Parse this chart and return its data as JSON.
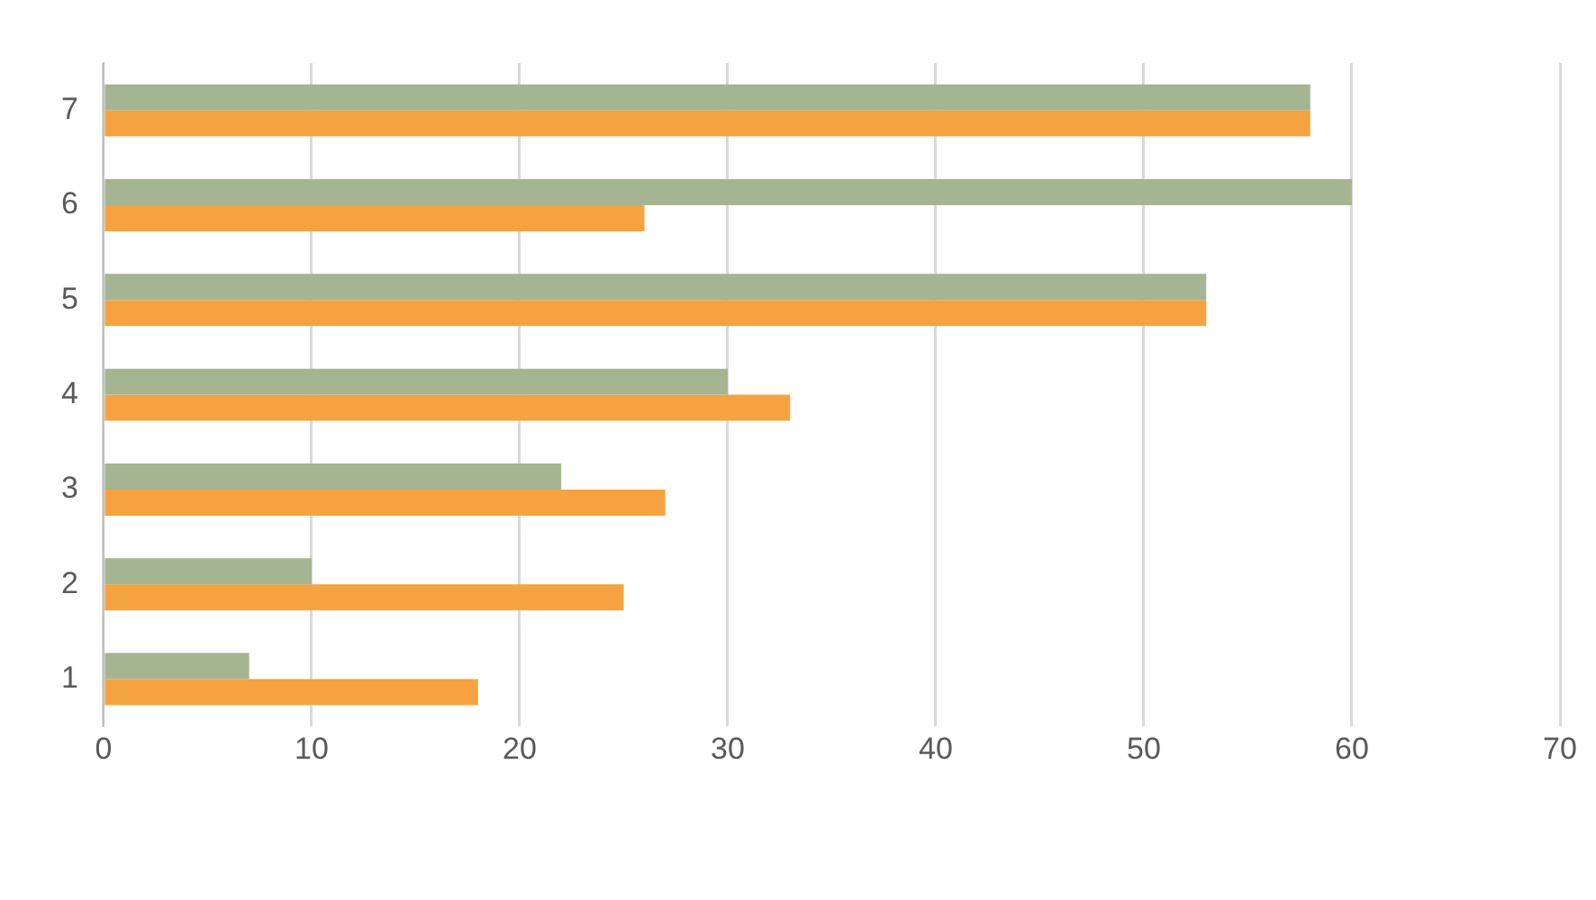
{
  "chart_data": {
    "type": "bar",
    "orientation": "horizontal",
    "categories": [
      "7",
      "6",
      "5",
      "4",
      "3",
      "2",
      "1"
    ],
    "series": [
      {
        "color": "#a5b592",
        "values": [
          58,
          60,
          53,
          30,
          22,
          10,
          7
        ]
      },
      {
        "color": "#f4a340",
        "values": [
          58,
          26,
          53,
          33,
          27,
          25,
          18
        ]
      }
    ],
    "xlim": [
      0,
      70
    ],
    "xticks": [
      0,
      10,
      20,
      30,
      40,
      50,
      60,
      70
    ],
    "grid": "x"
  }
}
